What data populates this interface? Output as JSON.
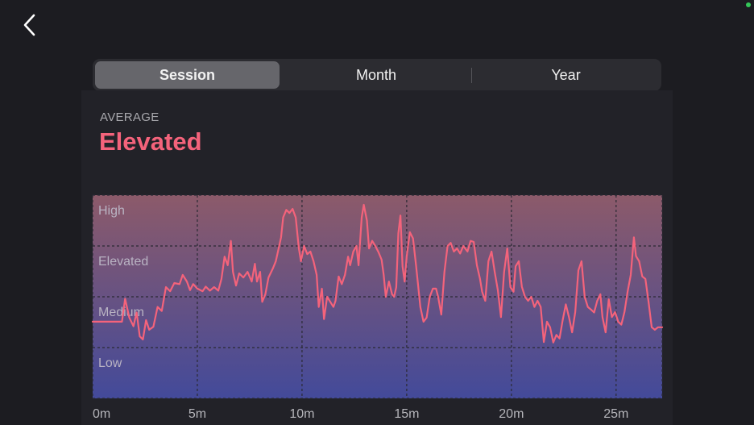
{
  "nav": {
    "back_icon": "chevron-left-icon"
  },
  "tabs": [
    {
      "label": "Session",
      "selected": true
    },
    {
      "label": "Month",
      "selected": false
    },
    {
      "label": "Year",
      "selected": false
    }
  ],
  "summary": {
    "label": "AVERAGE",
    "value": "Elevated",
    "value_color": "#f4637b"
  },
  "colors": {
    "line": "#f4637b",
    "gradient_top": "#8c5a6a",
    "gradient_bottom": "#434a9a",
    "status_dot": "#34c759"
  },
  "chart_data": {
    "type": "line",
    "x_unit": "minutes",
    "xlim": [
      0,
      27.2
    ],
    "x_ticks": [
      0,
      5,
      10,
      15,
      20,
      25
    ],
    "x_tick_labels": [
      "0m",
      "5m",
      "10m",
      "15m",
      "20m",
      "25m"
    ],
    "y_levels": [
      "Low",
      "Medium",
      "Elevated",
      "High"
    ],
    "ylim": [
      0,
      4
    ],
    "grid": true,
    "series": [
      {
        "values": [
          [
            0,
            1.51
          ],
          [
            1.4,
            1.51
          ],
          [
            1.55,
            1.96
          ],
          [
            1.75,
            1.59
          ],
          [
            1.95,
            1.42
          ],
          [
            2.1,
            1.69
          ],
          [
            2.25,
            1.22
          ],
          [
            2.4,
            1.16
          ],
          [
            2.55,
            1.54
          ],
          [
            2.7,
            1.35
          ],
          [
            2.9,
            1.41
          ],
          [
            3.1,
            1.8
          ],
          [
            3.3,
            1.72
          ],
          [
            3.5,
            2.19
          ],
          [
            3.7,
            2.11
          ],
          [
            3.9,
            2.27
          ],
          [
            4.15,
            2.25
          ],
          [
            4.3,
            2.43
          ],
          [
            4.5,
            2.3
          ],
          [
            4.65,
            2.13
          ],
          [
            4.8,
            2.25
          ],
          [
            5.0,
            2.16
          ],
          [
            5.25,
            2.11
          ],
          [
            5.4,
            2.2
          ],
          [
            5.6,
            2.12
          ],
          [
            5.8,
            2.19
          ],
          [
            6.0,
            2.12
          ],
          [
            6.15,
            2.35
          ],
          [
            6.3,
            2.79
          ],
          [
            6.45,
            2.62
          ],
          [
            6.6,
            3.1
          ],
          [
            6.7,
            2.49
          ],
          [
            6.85,
            2.22
          ],
          [
            7.0,
            2.46
          ],
          [
            7.2,
            2.38
          ],
          [
            7.4,
            2.49
          ],
          [
            7.6,
            2.3
          ],
          [
            7.75,
            2.65
          ],
          [
            7.85,
            2.3
          ],
          [
            8.0,
            2.49
          ],
          [
            8.1,
            1.9
          ],
          [
            8.25,
            2.05
          ],
          [
            8.4,
            2.38
          ],
          [
            8.6,
            2.55
          ],
          [
            8.75,
            2.7
          ],
          [
            8.9,
            2.98
          ],
          [
            9.0,
            3.17
          ],
          [
            9.1,
            3.56
          ],
          [
            9.25,
            3.71
          ],
          [
            9.4,
            3.65
          ],
          [
            9.55,
            3.73
          ],
          [
            9.7,
            3.56
          ],
          [
            9.85,
            2.95
          ],
          [
            9.95,
            2.7
          ],
          [
            10.1,
            3.0
          ],
          [
            10.25,
            2.84
          ],
          [
            10.4,
            2.89
          ],
          [
            10.55,
            2.7
          ],
          [
            10.7,
            2.43
          ],
          [
            10.8,
            1.8
          ],
          [
            10.95,
            2.16
          ],
          [
            11.05,
            1.56
          ],
          [
            11.2,
            2.0
          ],
          [
            11.35,
            1.9
          ],
          [
            11.5,
            1.8
          ],
          [
            11.6,
            1.92
          ],
          [
            11.75,
            2.4
          ],
          [
            11.9,
            2.25
          ],
          [
            12.05,
            2.43
          ],
          [
            12.2,
            2.79
          ],
          [
            12.3,
            2.62
          ],
          [
            12.45,
            2.89
          ],
          [
            12.6,
            3.0
          ],
          [
            12.7,
            2.62
          ],
          [
            12.85,
            3.56
          ],
          [
            12.95,
            3.81
          ],
          [
            13.1,
            3.5
          ],
          [
            13.2,
            2.95
          ],
          [
            13.35,
            3.1
          ],
          [
            13.5,
            3.0
          ],
          [
            13.65,
            2.88
          ],
          [
            13.8,
            2.73
          ],
          [
            13.9,
            2.43
          ],
          [
            14.0,
            2.0
          ],
          [
            14.15,
            2.3
          ],
          [
            14.3,
            2.05
          ],
          [
            14.4,
            2.0
          ],
          [
            14.5,
            2.19
          ],
          [
            14.6,
            3.25
          ],
          [
            14.7,
            3.6
          ],
          [
            14.8,
            2.6
          ],
          [
            14.9,
            2.3
          ],
          [
            15.0,
            2.8
          ],
          [
            15.15,
            3.27
          ],
          [
            15.3,
            3.15
          ],
          [
            15.45,
            2.6
          ],
          [
            15.55,
            2.2
          ],
          [
            15.65,
            1.8
          ],
          [
            15.8,
            1.51
          ],
          [
            15.95,
            1.59
          ],
          [
            16.1,
            2.0
          ],
          [
            16.25,
            2.16
          ],
          [
            16.4,
            2.16
          ],
          [
            16.5,
            2.0
          ],
          [
            16.65,
            1.65
          ],
          [
            16.8,
            2.49
          ],
          [
            16.95,
            3.0
          ],
          [
            17.1,
            3.06
          ],
          [
            17.25,
            2.89
          ],
          [
            17.4,
            2.95
          ],
          [
            17.55,
            2.85
          ],
          [
            17.7,
            3.0
          ],
          [
            17.9,
            2.89
          ],
          [
            18.05,
            3.1
          ],
          [
            18.2,
            3.08
          ],
          [
            18.35,
            2.62
          ],
          [
            18.5,
            2.35
          ],
          [
            18.6,
            2.1
          ],
          [
            18.75,
            1.92
          ],
          [
            18.9,
            2.7
          ],
          [
            19.05,
            2.89
          ],
          [
            19.2,
            2.49
          ],
          [
            19.35,
            2.13
          ],
          [
            19.5,
            1.6
          ],
          [
            19.65,
            2.49
          ],
          [
            19.8,
            2.95
          ],
          [
            19.95,
            2.19
          ],
          [
            20.1,
            2.1
          ],
          [
            20.2,
            2.6
          ],
          [
            20.35,
            2.7
          ],
          [
            20.5,
            2.2
          ],
          [
            20.65,
            2.0
          ],
          [
            20.8,
            1.92
          ],
          [
            20.95,
            2.0
          ],
          [
            21.1,
            1.8
          ],
          [
            21.25,
            1.92
          ],
          [
            21.4,
            1.8
          ],
          [
            21.55,
            1.11
          ],
          [
            21.7,
            1.51
          ],
          [
            21.85,
            1.4
          ],
          [
            22.0,
            1.1
          ],
          [
            22.15,
            1.25
          ],
          [
            22.3,
            1.18
          ],
          [
            22.45,
            1.54
          ],
          [
            22.6,
            1.85
          ],
          [
            22.75,
            1.6
          ],
          [
            22.9,
            1.3
          ],
          [
            23.05,
            1.7
          ],
          [
            23.2,
            2.52
          ],
          [
            23.35,
            2.7
          ],
          [
            23.5,
            2.0
          ],
          [
            23.65,
            1.8
          ],
          [
            23.8,
            1.75
          ],
          [
            23.95,
            1.69
          ],
          [
            24.1,
            1.92
          ],
          [
            24.25,
            2.05
          ],
          [
            24.35,
            1.6
          ],
          [
            24.5,
            1.3
          ],
          [
            24.65,
            1.95
          ],
          [
            24.8,
            1.6
          ],
          [
            24.95,
            1.7
          ],
          [
            25.1,
            1.51
          ],
          [
            25.25,
            1.45
          ],
          [
            25.4,
            1.7
          ],
          [
            25.55,
            2.1
          ],
          [
            25.7,
            2.43
          ],
          [
            25.85,
            3.17
          ],
          [
            25.95,
            2.8
          ],
          [
            26.1,
            2.7
          ],
          [
            26.25,
            2.4
          ],
          [
            26.4,
            2.35
          ],
          [
            26.55,
            1.9
          ],
          [
            26.7,
            1.4
          ],
          [
            26.85,
            1.35
          ],
          [
            27.0,
            1.4
          ],
          [
            27.2,
            1.4
          ]
        ]
      }
    ]
  }
}
